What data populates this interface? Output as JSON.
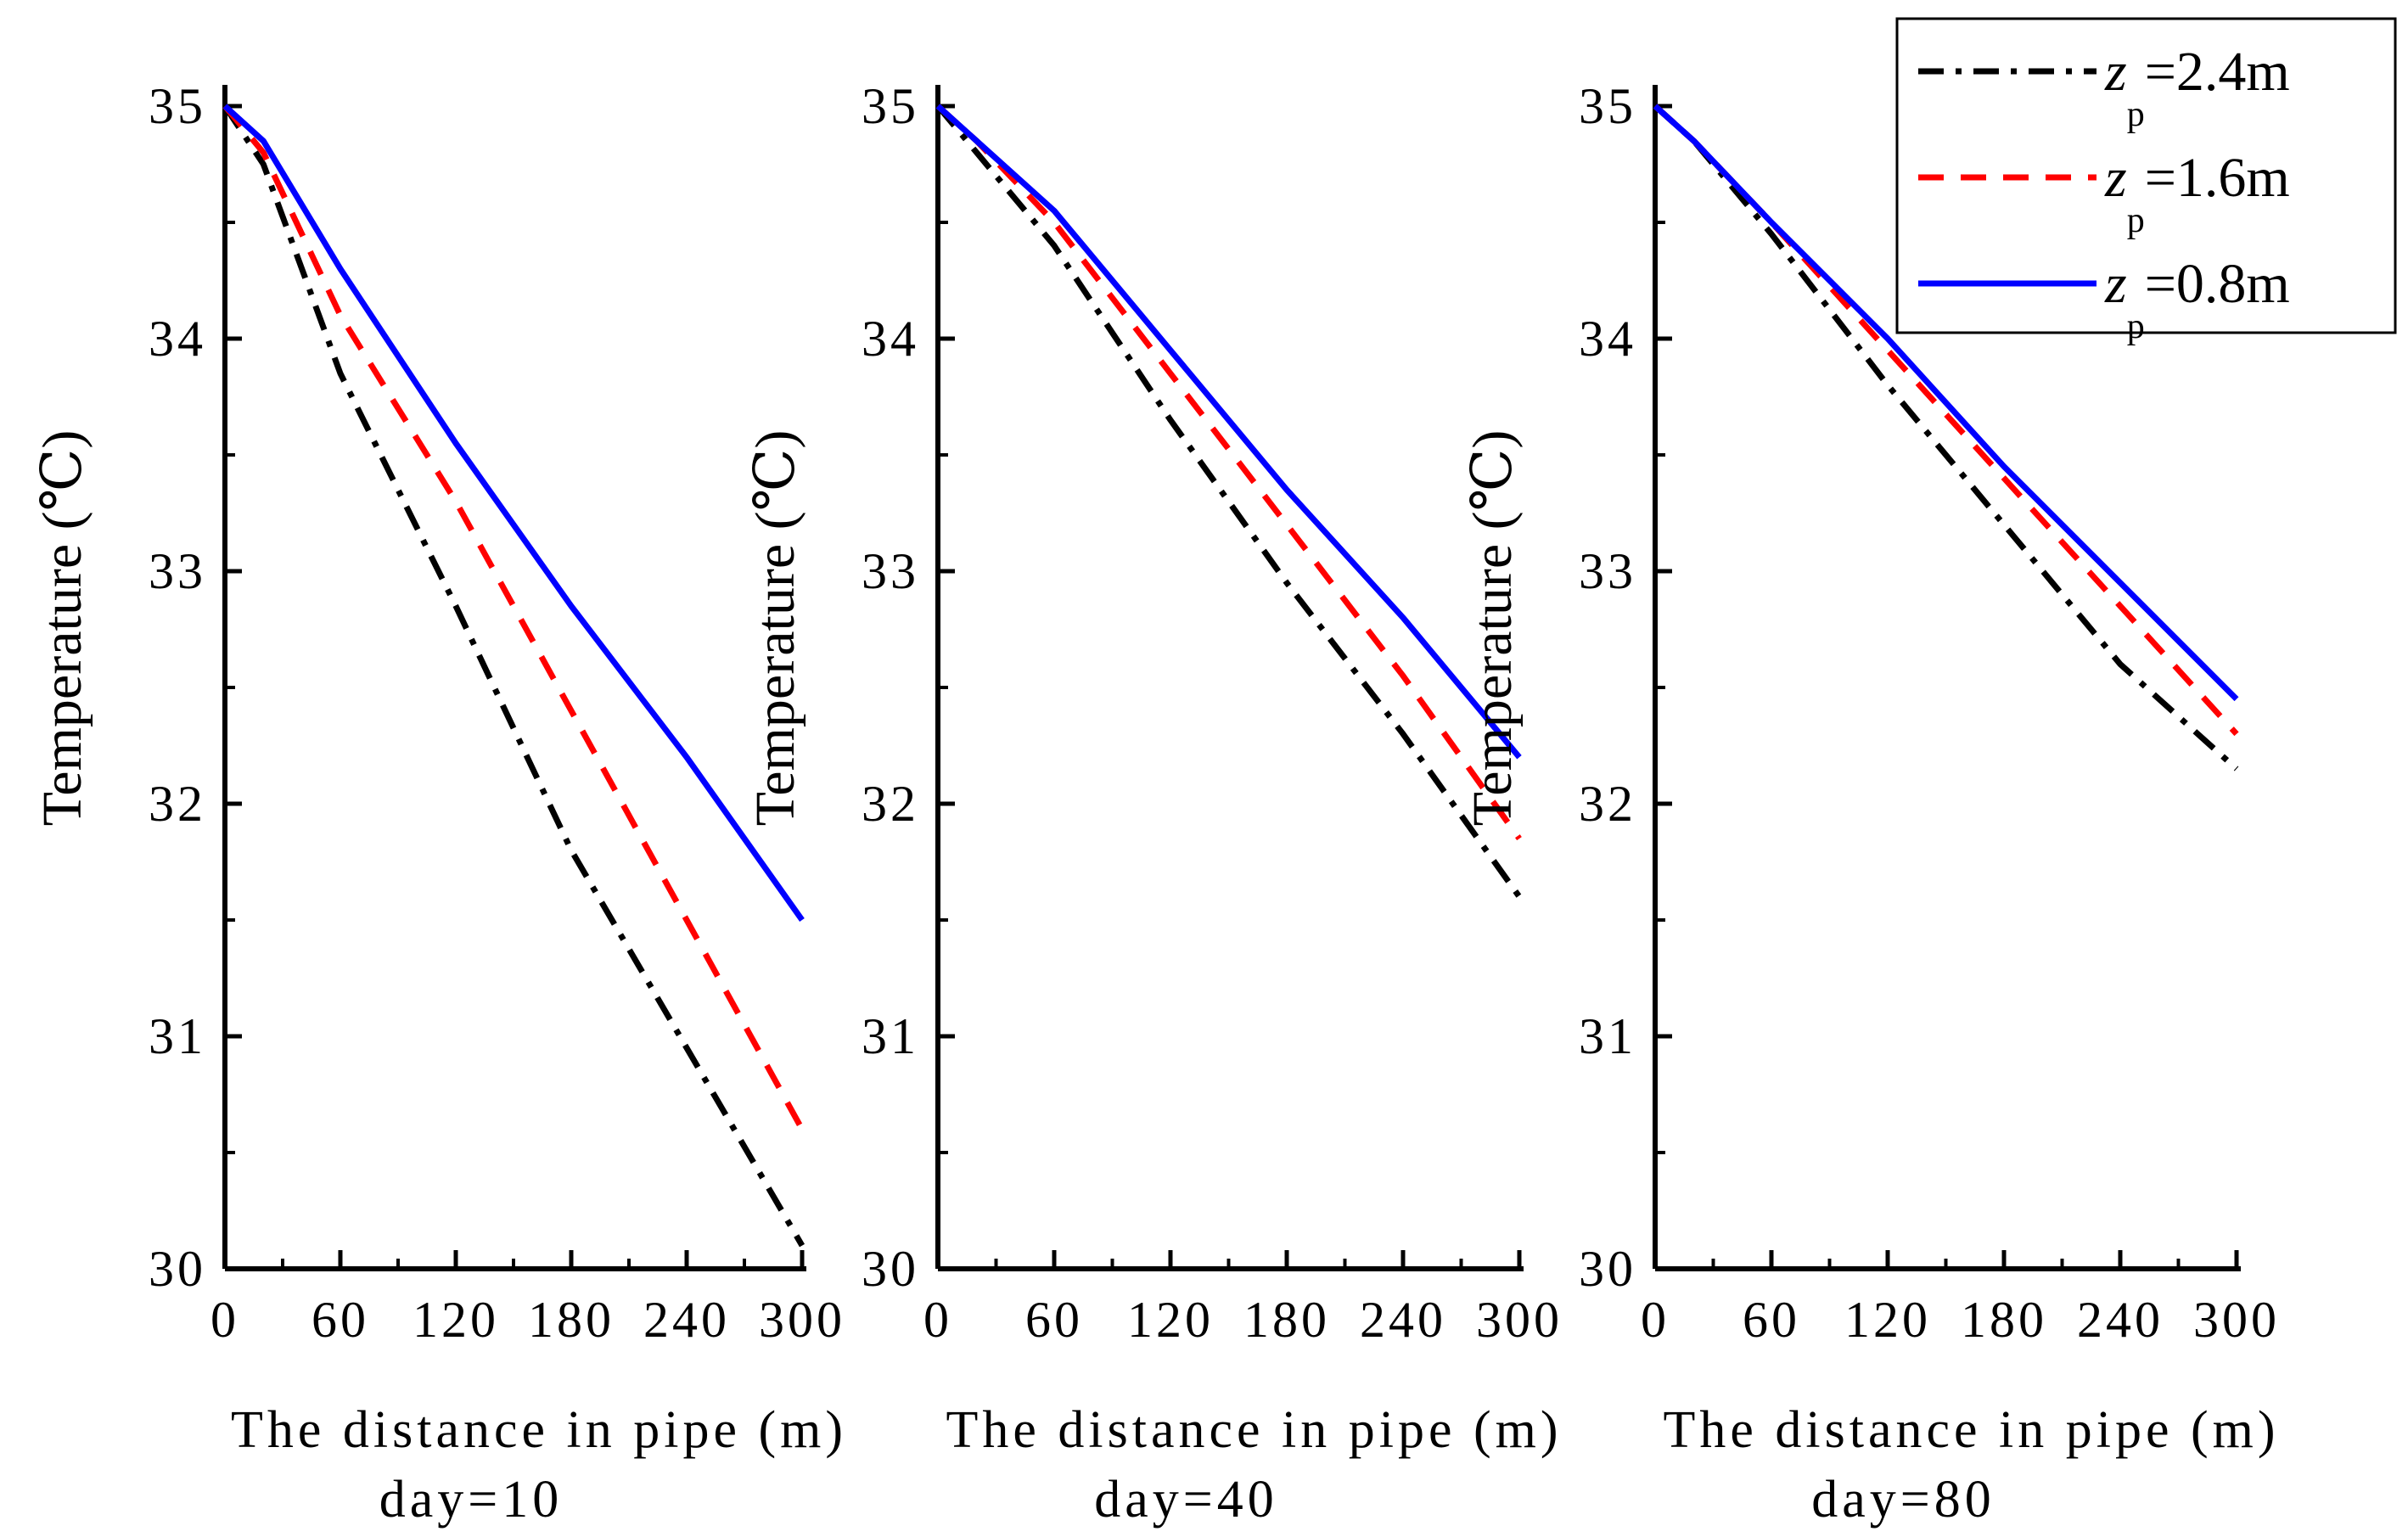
{
  "chart_data": [
    {
      "type": "line",
      "panel": "day-10",
      "title": "day=10",
      "xlabel": "The distance in pipe (m)",
      "ylabel": "Temperature (℃)",
      "xlim": [
        0,
        300
      ],
      "ylim": [
        30,
        35
      ],
      "xticks": [
        0,
        60,
        120,
        180,
        240,
        300
      ],
      "yticks": [
        30,
        31,
        32,
        33,
        34,
        35
      ],
      "x": [
        0,
        20,
        60,
        120,
        180,
        240,
        300
      ],
      "series": [
        {
          "name": "zp=2.4m",
          "color": "#000000",
          "dash": "dashdot",
          "values": [
            35.0,
            34.75,
            33.85,
            32.85,
            31.8,
            30.95,
            30.1
          ]
        },
        {
          "name": "zp=1.6m",
          "color": "#ff0000",
          "dash": "dash",
          "values": [
            35.0,
            34.8,
            34.1,
            33.3,
            32.4,
            31.5,
            30.6
          ]
        },
        {
          "name": "zp=0.8m",
          "color": "#0000ff",
          "dash": "solid",
          "values": [
            35.0,
            34.85,
            34.3,
            33.55,
            32.85,
            32.2,
            31.5
          ]
        }
      ]
    },
    {
      "type": "line",
      "panel": "day-40",
      "title": "day=40",
      "xlabel": "The distance in pipe (m)",
      "ylabel": "Temperature (℃)",
      "xlim": [
        0,
        300
      ],
      "ylim": [
        30,
        35
      ],
      "xticks": [
        0,
        60,
        120,
        180,
        240,
        300
      ],
      "yticks": [
        30,
        31,
        32,
        33,
        34,
        35
      ],
      "x": [
        0,
        20,
        60,
        120,
        180,
        240,
        300
      ],
      "series": [
        {
          "name": "zp=2.4m",
          "color": "#000000",
          "dash": "dashdot",
          "values": [
            35.0,
            34.8,
            34.4,
            33.65,
            32.95,
            32.3,
            31.6
          ]
        },
        {
          "name": "zp=1.6m",
          "color": "#ff0000",
          "dash": "dash",
          "values": [
            35.0,
            34.85,
            34.5,
            33.85,
            33.2,
            32.55,
            31.85
          ]
        },
        {
          "name": "zp=0.8m",
          "color": "#0000ff",
          "dash": "solid",
          "values": [
            35.0,
            34.85,
            34.55,
            33.95,
            33.35,
            32.8,
            32.2
          ]
        }
      ]
    },
    {
      "type": "line",
      "panel": "day-80",
      "title": "day=80",
      "xlabel": "The distance in pipe (m)",
      "ylabel": "Temperature (℃)",
      "xlim": [
        0,
        300
      ],
      "ylim": [
        30,
        35
      ],
      "xticks": [
        0,
        60,
        120,
        180,
        240,
        300
      ],
      "yticks": [
        30,
        31,
        32,
        33,
        34,
        35
      ],
      "x": [
        0,
        20,
        60,
        120,
        180,
        240,
        300
      ],
      "series": [
        {
          "name": "zp=2.4m",
          "color": "#000000",
          "dash": "dashdot",
          "values": [
            35.0,
            34.85,
            34.45,
            33.8,
            33.2,
            32.6,
            32.15
          ]
        },
        {
          "name": "zp=1.6m",
          "color": "#ff0000",
          "dash": "dash",
          "values": [
            35.0,
            34.85,
            34.5,
            33.95,
            33.4,
            32.85,
            32.3
          ]
        },
        {
          "name": "zp=0.8m",
          "color": "#0000ff",
          "dash": "solid",
          "values": [
            35.0,
            34.85,
            34.5,
            34.0,
            33.45,
            32.95,
            32.45
          ]
        }
      ]
    }
  ],
  "legend": {
    "position": "top-right",
    "entries": [
      {
        "var": "z",
        "sub": "p",
        "value": "=2.4m",
        "color": "#000000",
        "dash": "dashdot"
      },
      {
        "var": "z",
        "sub": "p",
        "value": "=1.6m",
        "color": "#ff0000",
        "dash": "dash"
      },
      {
        "var": "z",
        "sub": "p",
        "value": "=0.8m",
        "color": "#0000ff",
        "dash": "solid"
      }
    ]
  }
}
